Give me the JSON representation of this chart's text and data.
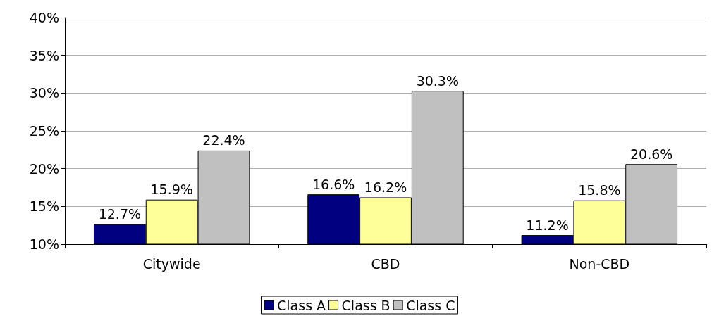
{
  "chart_data": {
    "type": "bar",
    "categories": [
      "Citywide",
      "CBD",
      "Non-CBD"
    ],
    "series": [
      {
        "name": "Class A",
        "color": "#000080",
        "values": [
          12.7,
          16.6,
          11.2
        ],
        "value_labels": [
          "12.7%",
          "16.6%",
          "11.2%"
        ]
      },
      {
        "name": "Class B",
        "color": "#ffff99",
        "values": [
          15.9,
          16.2,
          15.8
        ],
        "value_labels": [
          "15.9%",
          "16.2%",
          "15.8%"
        ]
      },
      {
        "name": "Class C",
        "color": "#c0c0c0",
        "values": [
          22.4,
          30.3,
          20.6
        ],
        "value_labels": [
          "22.4%",
          "30.3%",
          "20.6%"
        ]
      }
    ],
    "ylim": [
      10,
      40
    ],
    "yticks": [
      {
        "value": 10,
        "label": "10%"
      },
      {
        "value": 15,
        "label": "15%"
      },
      {
        "value": 20,
        "label": "20%"
      },
      {
        "value": 25,
        "label": "25%"
      },
      {
        "value": 30,
        "label": "30%"
      },
      {
        "value": 35,
        "label": "35%"
      },
      {
        "value": 40,
        "label": "40%"
      }
    ],
    "grid": "y",
    "legend": "bottom"
  }
}
